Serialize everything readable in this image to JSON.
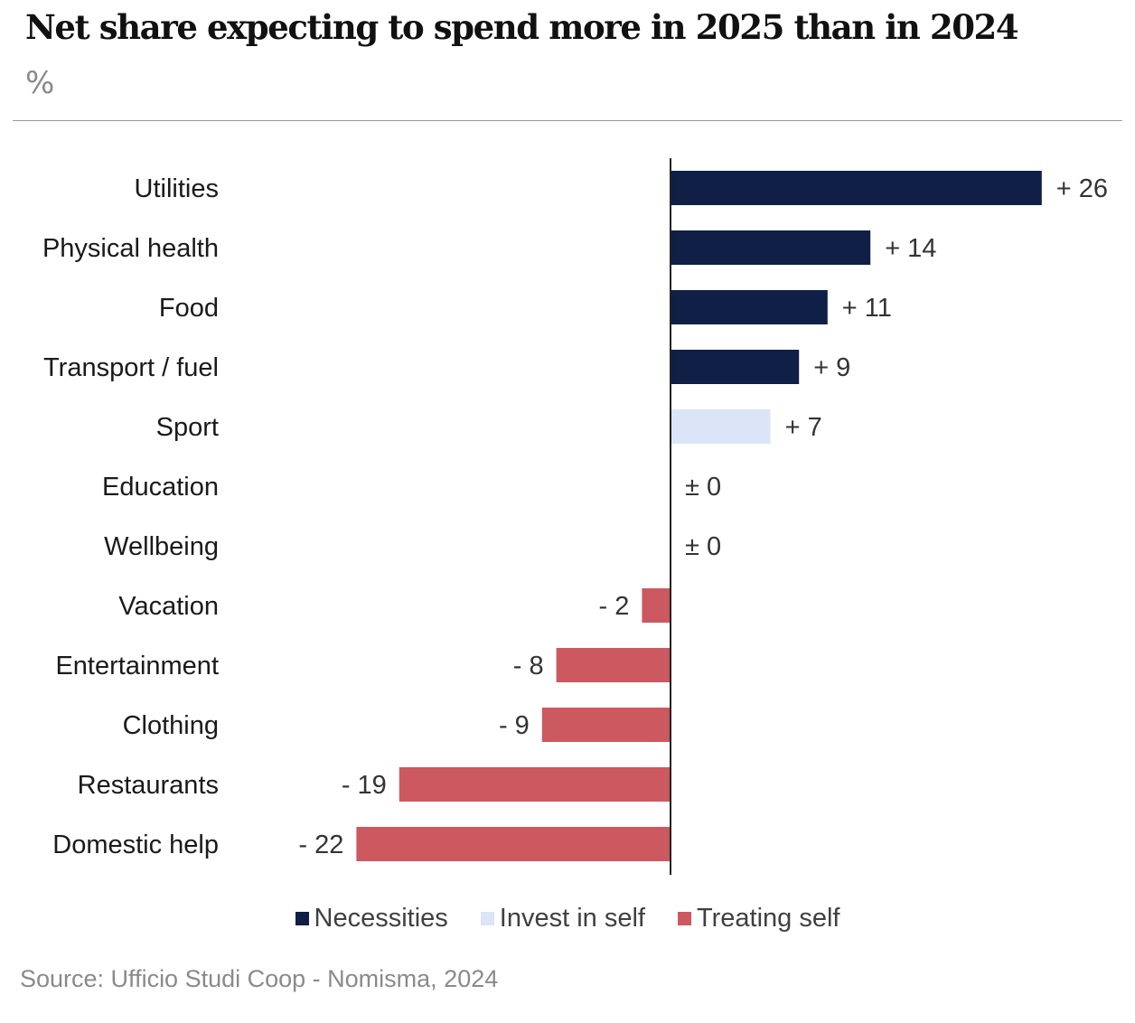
{
  "header": {
    "title": "Net share expecting to spend more in 2025 than in 2024",
    "subtitle": "%"
  },
  "colors": {
    "necessities": "#0f1f45",
    "invest": "#dbe5f7",
    "treating": "#cc5860",
    "axis": "#222222",
    "label": "#1a1a1a"
  },
  "chart_data": {
    "type": "bar",
    "orientation": "horizontal",
    "title": "Net share expecting to spend more in 2025 than in 2024",
    "unit": "%",
    "categories": [
      "Utilities",
      "Physical health",
      "Food",
      "Transport / fuel",
      "Sport",
      "Education",
      "Wellbeing",
      "Vacation",
      "Entertainment",
      "Clothing",
      "Restaurants",
      "Domestic help"
    ],
    "values": [
      26,
      14,
      11,
      9,
      7,
      0,
      0,
      -2,
      -8,
      -9,
      -19,
      -22
    ],
    "value_labels": [
      "+ 26",
      "+ 14",
      "+ 11",
      "+ 9",
      "+ 7",
      "± 0",
      "± 0",
      "- 2",
      "- 8",
      "- 9",
      "- 19",
      "- 22"
    ],
    "groups": [
      "necessities",
      "necessities",
      "necessities",
      "necessities",
      "invest",
      "invest",
      "invest",
      "treating",
      "treating",
      "treating",
      "treating",
      "treating"
    ],
    "xlim": [
      -22,
      26
    ],
    "legend_position": "bottom-center"
  },
  "legend": {
    "items": [
      {
        "key": "necessities",
        "label": "Necessities"
      },
      {
        "key": "invest",
        "label": "Invest in self"
      },
      {
        "key": "treating",
        "label": "Treating self"
      }
    ]
  },
  "footer": {
    "source": "Source: Ufficio Studi Coop - Nomisma, 2024"
  }
}
